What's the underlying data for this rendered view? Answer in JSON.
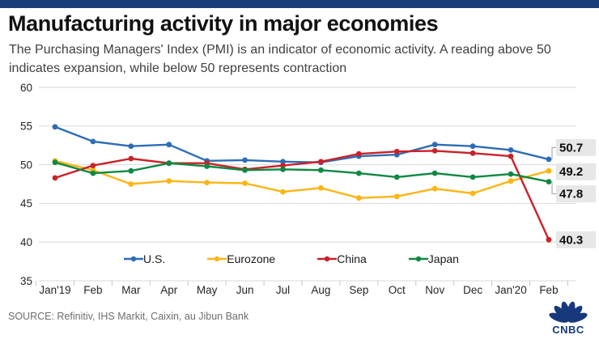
{
  "header": {
    "title": "Manufacturing activity in major economies",
    "subtitle": "The Purchasing Managers' Index (PMI) is an indicator of economic activity. A reading above 50 indicates expansion, while below 50 represents contraction"
  },
  "source_text": "SOURCE: Refinitiv, IHS Markit, Caixin, au Jibun Bank",
  "logo_text": "CNBC",
  "colors": {
    "topbar_navy": "#1a3c78",
    "logo_navy": "#17397b",
    "grid": "#d9d9d9",
    "tick": "#c4c4c4",
    "axis_text": "#262626",
    "end_label_bg": "#e7e7e7",
    "us_blue": "#2d6db6",
    "eurozone_yellow": "#fdb515",
    "china_red": "#ca2128",
    "japan_green": "#0e8843"
  },
  "chart_data": {
    "type": "line",
    "x": [
      "Jan'19",
      "Feb",
      "Mar",
      "Apr",
      "May",
      "Jun",
      "Jul",
      "Aug",
      "Sep",
      "Oct",
      "Nov",
      "Dec",
      "Jan'20",
      "Feb"
    ],
    "series": [
      {
        "name": "U.S.",
        "color": "#2d6db6",
        "end_label": "50.7",
        "values": [
          54.9,
          53.0,
          52.4,
          52.6,
          50.5,
          50.6,
          50.4,
          50.3,
          51.1,
          51.3,
          52.6,
          52.4,
          51.9,
          50.7
        ]
      },
      {
        "name": "Eurozone",
        "color": "#fdb515",
        "end_label": "49.2",
        "values": [
          50.5,
          49.3,
          47.5,
          47.9,
          47.7,
          47.6,
          46.5,
          47.0,
          45.7,
          45.9,
          46.9,
          46.3,
          47.9,
          49.2
        ]
      },
      {
        "name": "China",
        "color": "#ca2128",
        "end_label": "40.3",
        "values": [
          48.3,
          49.9,
          50.8,
          50.2,
          50.2,
          49.4,
          49.9,
          50.4,
          51.4,
          51.7,
          51.8,
          51.5,
          51.1,
          40.3
        ]
      },
      {
        "name": "Japan",
        "color": "#0e8843",
        "end_label": "47.8",
        "values": [
          50.3,
          48.9,
          49.2,
          50.2,
          49.8,
          49.3,
          49.4,
          49.3,
          48.9,
          48.4,
          48.9,
          48.4,
          48.8,
          47.8
        ]
      }
    ],
    "ylim": [
      35,
      60
    ],
    "yticks": [
      60,
      55,
      50,
      45,
      40,
      35
    ],
    "grid": true,
    "legend_position": "bottom",
    "title": "Manufacturing activity in major economies",
    "xlabel": "",
    "ylabel": ""
  }
}
